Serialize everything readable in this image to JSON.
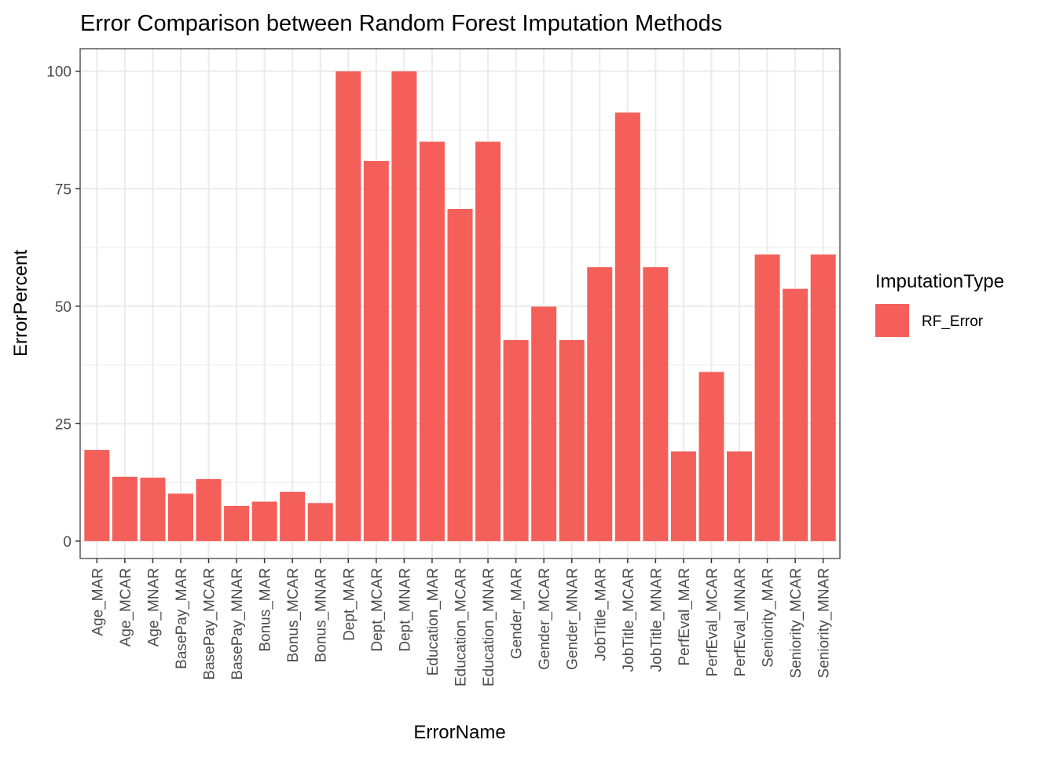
{
  "chart_data": {
    "type": "bar",
    "title": "Error Comparison between Random Forest Imputation Methods",
    "xlabel": "ErrorName",
    "ylabel": "ErrorPercent",
    "ylim": [
      -3.7,
      104.8
    ],
    "yticks": [
      0,
      25,
      50,
      75,
      100
    ],
    "grid": true,
    "legend": {
      "title": "ImputationType",
      "position": "right",
      "entries": [
        {
          "label": "RF_Error",
          "color": "#f45f5a"
        }
      ]
    },
    "categories": [
      "Age_MAR",
      "Age_MCAR",
      "Age_MNAR",
      "BasePay_MAR",
      "BasePay_MCAR",
      "BasePay_MNAR",
      "Bonus_MAR",
      "Bonus_MCAR",
      "Bonus_MNAR",
      "Dept_MAR",
      "Dept_MCAR",
      "Dept_MNAR",
      "Education_MAR",
      "Education_MCAR",
      "Education_MNAR",
      "Gender_MAR",
      "Gender_MCAR",
      "Gender_MNAR",
      "JobTitle_MAR",
      "JobTitle_MCAR",
      "JobTitle_MNAR",
      "PerfEval_MAR",
      "PerfEval_MCAR",
      "PerfEval_MNAR",
      "Seniority_MAR",
      "Seniority_MCAR",
      "Seniority_MNAR"
    ],
    "series": [
      {
        "name": "RF_Error",
        "color": "#f45f5a",
        "values": [
          19.4,
          13.7,
          13.5,
          10.1,
          13.2,
          7.5,
          8.4,
          10.5,
          8.1,
          100,
          80.9,
          100,
          85.0,
          70.7,
          85.0,
          42.8,
          49.9,
          42.8,
          58.3,
          91.2,
          58.3,
          19.1,
          36.0,
          19.1,
          61.0,
          53.7,
          61.0
        ]
      }
    ]
  }
}
